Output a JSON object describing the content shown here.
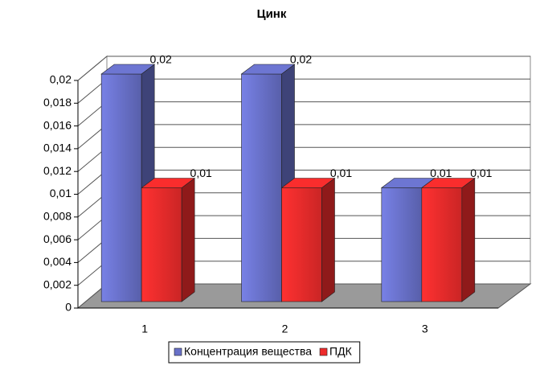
{
  "chart_data": {
    "type": "bar3d",
    "title": "Цинк",
    "categories": [
      "1",
      "2",
      "3"
    ],
    "series": [
      {
        "name": "Концентрация вещества",
        "color": "#6870c8",
        "values": [
          0.02,
          0.02,
          0.01
        ],
        "value_labels": [
          "0,02",
          "0,02",
          "0,01"
        ]
      },
      {
        "name": "ПДК",
        "color": "#ee2b2b",
        "values": [
          0.01,
          0.01,
          0.01
        ],
        "value_labels": [
          "0,01",
          "0,01",
          "0,01"
        ]
      }
    ],
    "ylim": [
      0,
      0.02
    ],
    "yticks": [
      0,
      {
        "value": 0.002,
        "label": "0,002"
      },
      {
        "value": 0.004,
        "label": "0,004"
      },
      {
        "value": 0.006,
        "label": "0,006"
      },
      {
        "value": 0.008,
        "label": "0,008"
      },
      {
        "value": 0.01,
        "label": "0,01"
      },
      {
        "value": 0.012,
        "label": "0,012"
      },
      {
        "value": 0.014,
        "label": "0,014"
      },
      {
        "value": 0.016,
        "label": "0,016"
      },
      {
        "value": 0.018,
        "label": "0,018"
      },
      {
        "value": 0.02,
        "label": "0,02"
      }
    ],
    "grid": true,
    "legend": "bottom"
  }
}
